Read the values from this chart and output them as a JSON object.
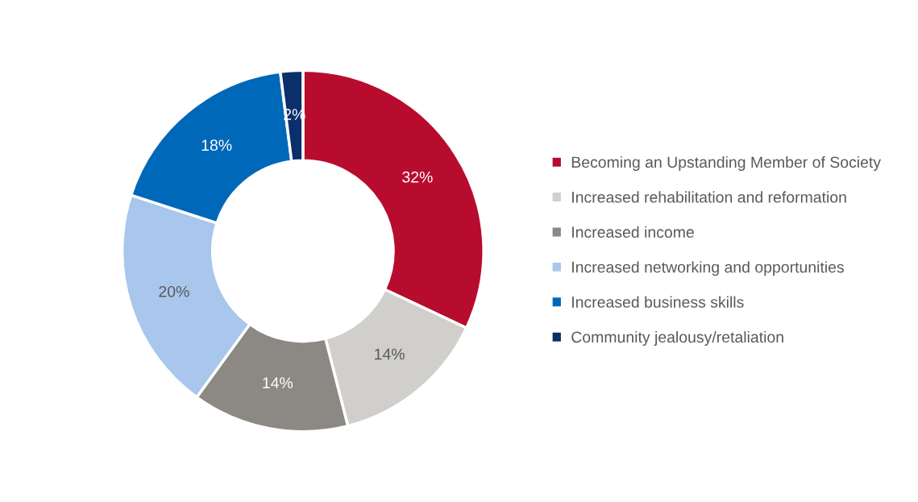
{
  "chart_data": {
    "type": "donut",
    "categories": [
      "Becoming an Upstanding Member of Society",
      "Increased rehabilitation and reformation",
      "Increased income",
      "Increased networking and opportunities",
      "Increased business skills",
      "Community jealousy/retaliation"
    ],
    "values": [
      32,
      14,
      14,
      20,
      18,
      2
    ],
    "colors": [
      "#b80c2e",
      "#d0cfcb",
      "#8c8984",
      "#a9c6ec",
      "#0068b8",
      "#0b2f6a"
    ],
    "value_labels": [
      "32%",
      "14%",
      "14%",
      "20%",
      "18%",
      "2%"
    ],
    "legend": "right"
  }
}
